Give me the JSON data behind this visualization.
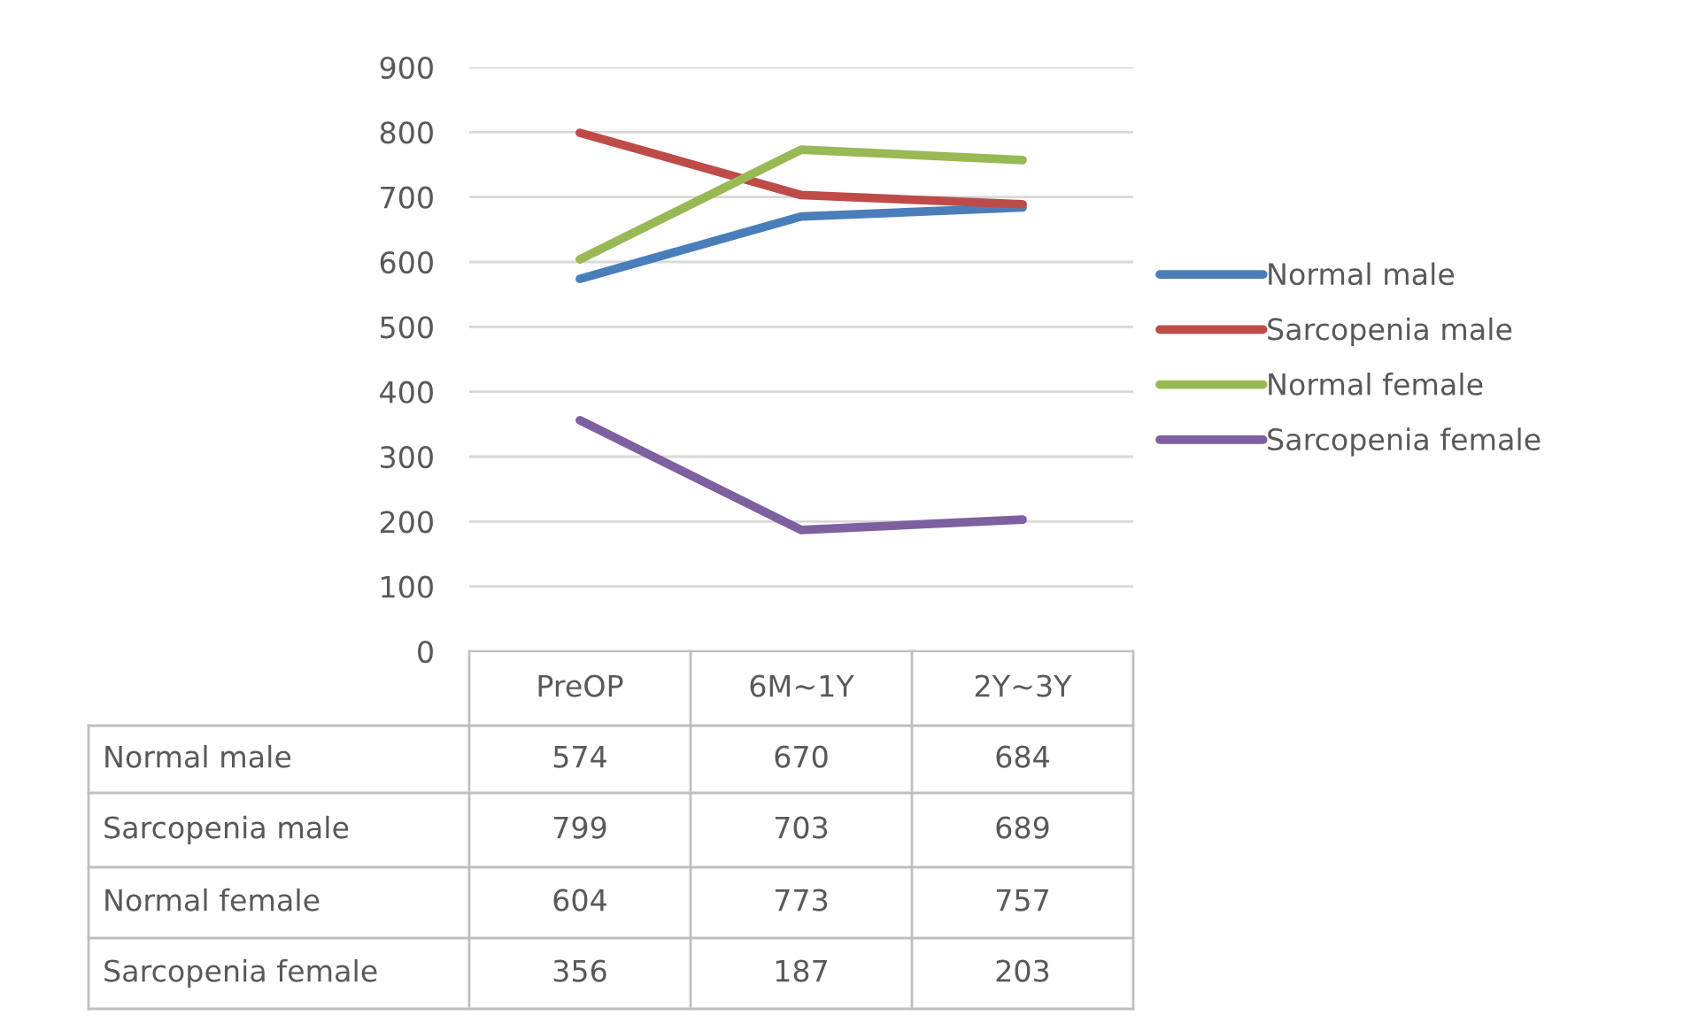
{
  "chart_data": {
    "type": "line",
    "categories": [
      "PreOP",
      "6M~1Y",
      "2Y~3Y"
    ],
    "series": [
      {
        "name": "Normal male",
        "color": "#4a7ebb",
        "values": [
          574,
          670,
          684
        ]
      },
      {
        "name": "Sarcopenia male",
        "color": "#be4b48",
        "values": [
          799,
          703,
          689
        ]
      },
      {
        "name": "Normal female",
        "color": "#98b954",
        "values": [
          604,
          773,
          757
        ]
      },
      {
        "name": "Sarcopenia female",
        "color": "#7d60a0",
        "values": [
          356,
          187,
          203
        ]
      }
    ],
    "ylim": [
      0,
      900
    ],
    "yticks": [
      0,
      100,
      200,
      300,
      400,
      500,
      600,
      700,
      800,
      900
    ],
    "grid": "y",
    "legend": "right",
    "data_labels": true,
    "marker": "none",
    "line_style": "solid"
  }
}
